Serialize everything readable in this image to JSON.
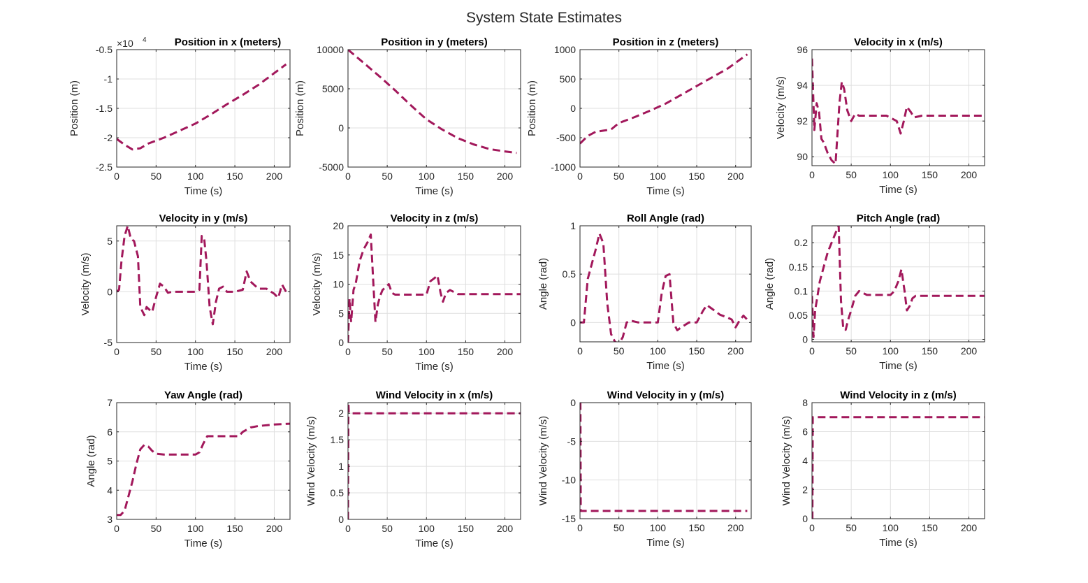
{
  "figure": {
    "title": "System State Estimates",
    "line_color": "#A2185B",
    "axis_color": "#262626",
    "grid_color": "#DFDFDF"
  },
  "chart_data": [
    {
      "type": "line",
      "title": "Position in x (meters)",
      "xlabel": "Time (s)",
      "ylabel": "Position (m)",
      "xlim": [
        0,
        220
      ],
      "ylim": [
        -2.5,
        -0.5
      ],
      "exponent_label": "×10",
      "exponent_power": "4",
      "xticks": [
        0,
        50,
        100,
        150,
        200
      ],
      "xtick_labels": [
        "0",
        "50",
        "100",
        "150",
        "200"
      ],
      "yticks": [
        -2.5,
        -2,
        -1.5,
        -1,
        -0.5
      ],
      "ytick_labels": [
        "-2.5",
        "-2",
        "-1.5",
        "-1",
        "-0.5"
      ],
      "series": [
        {
          "x": [
            0,
            10,
            20,
            30,
            40,
            60,
            80,
            100,
            120,
            140,
            160,
            180,
            200,
            215
          ],
          "y": [
            -2.02,
            -2.12,
            -2.2,
            -2.18,
            -2.1,
            -2.0,
            -1.88,
            -1.76,
            -1.6,
            -1.43,
            -1.27,
            -1.1,
            -0.9,
            -0.75
          ]
        }
      ]
    },
    {
      "type": "line",
      "title": "Position in y (meters)",
      "xlabel": "Time (s)",
      "ylabel": "Position (m)",
      "xlim": [
        0,
        220
      ],
      "ylim": [
        -5000,
        10000
      ],
      "xticks": [
        0,
        50,
        100,
        150,
        200
      ],
      "xtick_labels": [
        "0",
        "50",
        "100",
        "150",
        "200"
      ],
      "yticks": [
        -5000,
        0,
        5000,
        10000
      ],
      "ytick_labels": [
        "-5000",
        "0",
        "5000",
        "10000"
      ],
      "series": [
        {
          "x": [
            0,
            20,
            40,
            60,
            80,
            100,
            120,
            140,
            160,
            180,
            200,
            215
          ],
          "y": [
            10000,
            8300,
            6600,
            4800,
            2900,
            1100,
            -200,
            -1300,
            -2100,
            -2700,
            -3000,
            -3200
          ]
        }
      ]
    },
    {
      "type": "line",
      "title": "Position in z (meters)",
      "xlabel": "Time (s)",
      "ylabel": "Position (m)",
      "xlim": [
        0,
        220
      ],
      "ylim": [
        -1000,
        1000
      ],
      "xticks": [
        0,
        50,
        100,
        150,
        200
      ],
      "xtick_labels": [
        "0",
        "50",
        "100",
        "150",
        "200"
      ],
      "yticks": [
        -1000,
        -500,
        0,
        500,
        1000
      ],
      "ytick_labels": [
        "-1000",
        "-500",
        "0",
        "500",
        "1000"
      ],
      "series": [
        {
          "x": [
            0,
            10,
            20,
            30,
            40,
            50,
            70,
            90,
            110,
            130,
            150,
            170,
            190,
            215
          ],
          "y": [
            -600,
            -470,
            -400,
            -380,
            -360,
            -250,
            -150,
            -40,
            80,
            230,
            380,
            530,
            680,
            920
          ]
        }
      ]
    },
    {
      "type": "line",
      "title": "Velocity in x (m/s)",
      "xlabel": "Time (s)",
      "ylabel": "Velocity (m/s)",
      "xlim": [
        0,
        220
      ],
      "ylim": [
        89.5,
        96
      ],
      "xticks": [
        0,
        50,
        100,
        150,
        200
      ],
      "xtick_labels": [
        "0",
        "50",
        "100",
        "150",
        "200"
      ],
      "yticks": [
        90,
        92,
        94,
        96
      ],
      "ytick_labels": [
        "90",
        "92",
        "94",
        "96"
      ],
      "series": [
        {
          "x": [
            0,
            3,
            6,
            9,
            12,
            15,
            20,
            25,
            30,
            35,
            38,
            41,
            45,
            50,
            55,
            60,
            70,
            80,
            95,
            108,
            113,
            117,
            121,
            126,
            130,
            140,
            160,
            180,
            200,
            220
          ],
          "y": [
            95.5,
            91.5,
            93.0,
            92.5,
            91.0,
            90.8,
            90.2,
            89.8,
            89.6,
            93.0,
            94.2,
            93.8,
            92.6,
            92.0,
            92.4,
            92.3,
            92.3,
            92.3,
            92.3,
            92.0,
            91.3,
            92.0,
            92.8,
            92.5,
            92.2,
            92.3,
            92.3,
            92.3,
            92.3,
            92.3
          ]
        }
      ]
    },
    {
      "type": "line",
      "title": "Velocity in y (m/s)",
      "xlabel": "Time (s)",
      "ylabel": "Velocity (m/s)",
      "xlim": [
        0,
        220
      ],
      "ylim": [
        -5,
        6.5
      ],
      "xticks": [
        0,
        50,
        100,
        150,
        200
      ],
      "xtick_labels": [
        "0",
        "50",
        "100",
        "150",
        "200"
      ],
      "yticks": [
        -5,
        0,
        5
      ],
      "ytick_labels": [
        "-5",
        "0",
        "5"
      ],
      "series": [
        {
          "x": [
            0,
            3,
            6,
            10,
            14,
            18,
            22,
            27,
            30,
            35,
            38,
            42,
            45,
            50,
            55,
            60,
            65,
            70,
            80,
            90,
            100,
            105,
            108,
            111,
            114,
            118,
            122,
            126,
            130,
            135,
            140,
            150,
            160,
            165,
            170,
            180,
            190,
            200,
            205,
            210,
            215
          ],
          "y": [
            0,
            0.2,
            3.0,
            5.5,
            6.5,
            5.2,
            5.0,
            3.5,
            -1.5,
            -2.3,
            -1.5,
            -1.8,
            -2.0,
            -0.5,
            0.8,
            0.5,
            -0.1,
            0.0,
            0.0,
            0.0,
            0.0,
            0.2,
            5.5,
            5.3,
            3.0,
            -1.5,
            -3.2,
            -1.0,
            0.3,
            0.5,
            0.0,
            0.0,
            0.2,
            2.0,
            1.0,
            0.3,
            0.3,
            -0.2,
            -0.6,
            0.7,
            0.0
          ]
        }
      ]
    },
    {
      "type": "line",
      "title": "Velocity in z (m/s)",
      "xlabel": "Time (s)",
      "ylabel": "Velocity (m/s)",
      "xlim": [
        0,
        220
      ],
      "ylim": [
        0,
        20
      ],
      "xticks": [
        0,
        50,
        100,
        150,
        200
      ],
      "xtick_labels": [
        "0",
        "50",
        "100",
        "150",
        "200"
      ],
      "yticks": [
        0,
        5,
        10,
        15,
        20
      ],
      "ytick_labels": [
        "0",
        "5",
        "10",
        "15",
        "20"
      ],
      "series": [
        {
          "x": [
            0,
            2,
            4,
            7,
            10,
            15,
            20,
            25,
            29,
            32,
            35,
            38,
            41,
            44,
            48,
            52,
            56,
            60,
            70,
            80,
            100,
            105,
            110,
            114,
            118,
            121,
            125,
            130,
            140,
            160,
            180,
            200,
            220
          ],
          "y": [
            0,
            7.5,
            3.5,
            9.0,
            10.2,
            14.0,
            16.0,
            17.2,
            18.5,
            11.0,
            3.5,
            6.5,
            8.0,
            9.0,
            9.5,
            10.0,
            8.5,
            8.2,
            8.2,
            8.2,
            8.2,
            10.5,
            11.0,
            11.5,
            8.5,
            7.0,
            8.5,
            9.0,
            8.3,
            8.3,
            8.3,
            8.3,
            8.3
          ]
        }
      ]
    },
    {
      "type": "line",
      "title": "Roll Angle (rad)",
      "xlabel": "Time (s)",
      "ylabel": "Angle (rad)",
      "xlim": [
        0,
        220
      ],
      "ylim": [
        -0.2,
        1
      ],
      "xticks": [
        0,
        50,
        100,
        150,
        200
      ],
      "xtick_labels": [
        "0",
        "50",
        "100",
        "150",
        "200"
      ],
      "yticks": [
        0,
        0.5,
        1
      ],
      "ytick_labels": [
        "0",
        "0.5",
        "1"
      ],
      "series": [
        {
          "x": [
            0,
            5,
            10,
            15,
            20,
            25,
            30,
            35,
            40,
            45,
            50,
            55,
            60,
            65,
            75,
            90,
            100,
            105,
            110,
            115,
            120,
            125,
            130,
            140,
            150,
            158,
            163,
            170,
            180,
            190,
            195,
            200,
            205,
            210,
            215
          ],
          "y": [
            0,
            0,
            0.45,
            0.6,
            0.75,
            0.92,
            0.82,
            0.2,
            -0.12,
            -0.2,
            -0.22,
            -0.15,
            0.0,
            0.02,
            0.0,
            0.0,
            0.0,
            0.3,
            0.48,
            0.5,
            0.0,
            -0.08,
            -0.05,
            0.0,
            0.0,
            0.12,
            0.18,
            0.14,
            0.08,
            0.05,
            0.03,
            -0.05,
            0.02,
            0.07,
            0.03
          ]
        }
      ]
    },
    {
      "type": "line",
      "title": "Pitch Angle (rad)",
      "xlabel": "Time (s)",
      "ylabel": "Angle (rad)",
      "xlim": [
        0,
        220
      ],
      "ylim": [
        -0.005,
        0.235
      ],
      "xticks": [
        0,
        50,
        100,
        150,
        200
      ],
      "xtick_labels": [
        "0",
        "50",
        "100",
        "150",
        "200"
      ],
      "yticks": [
        0,
        0.05,
        0.1,
        0.15,
        0.2
      ],
      "ytick_labels": [
        "0",
        "0.05",
        "0.1",
        "0.15",
        "0.2"
      ],
      "series": [
        {
          "x": [
            0,
            2,
            4,
            7,
            10,
            15,
            20,
            25,
            30,
            34,
            37,
            40,
            43,
            46,
            50,
            55,
            60,
            70,
            80,
            90,
            100,
            105,
            110,
            114,
            118,
            121,
            125,
            128,
            132,
            140,
            160,
            180,
            200,
            220
          ],
          "y": [
            0.09,
            0.005,
            0.06,
            0.09,
            0.12,
            0.15,
            0.18,
            0.2,
            0.22,
            0.235,
            0.08,
            0.02,
            0.02,
            0.04,
            0.06,
            0.09,
            0.1,
            0.092,
            0.092,
            0.092,
            0.092,
            0.1,
            0.12,
            0.145,
            0.1,
            0.06,
            0.07,
            0.085,
            0.09,
            0.09,
            0.09,
            0.09,
            0.09,
            0.09
          ]
        }
      ]
    },
    {
      "type": "line",
      "title": "Yaw Angle (rad)",
      "xlabel": "Time (s)",
      "ylabel": "Angle (rad)",
      "xlim": [
        0,
        220
      ],
      "ylim": [
        3,
        7
      ],
      "xticks": [
        0,
        50,
        100,
        150,
        200
      ],
      "xtick_labels": [
        "0",
        "50",
        "100",
        "150",
        "200"
      ],
      "yticks": [
        3,
        4,
        5,
        6,
        7
      ],
      "ytick_labels": [
        "3",
        "4",
        "5",
        "6",
        "7"
      ],
      "series": [
        {
          "x": [
            0,
            5,
            10,
            15,
            20,
            25,
            30,
            35,
            40,
            45,
            50,
            60,
            80,
            100,
            105,
            110,
            115,
            120,
            140,
            155,
            160,
            170,
            180,
            200,
            220
          ],
          "y": [
            3.15,
            3.15,
            3.3,
            3.8,
            4.3,
            4.9,
            5.4,
            5.55,
            5.5,
            5.35,
            5.25,
            5.22,
            5.22,
            5.22,
            5.3,
            5.6,
            5.85,
            5.85,
            5.85,
            5.85,
            6.0,
            6.15,
            6.2,
            6.25,
            6.28
          ]
        }
      ]
    },
    {
      "type": "line",
      "title": "Wind Velocity in x (m/s)",
      "xlabel": "Time (s)",
      "ylabel": "Wind Velocity (m/s)",
      "xlim": [
        0,
        220
      ],
      "ylim": [
        0,
        2.2
      ],
      "xticks": [
        0,
        50,
        100,
        150,
        200
      ],
      "xtick_labels": [
        "0",
        "50",
        "100",
        "150",
        "200"
      ],
      "yticks": [
        0,
        0.5,
        1,
        1.5,
        2
      ],
      "ytick_labels": [
        "0",
        "0.5",
        "1",
        "1.5",
        "2"
      ],
      "series": [
        {
          "x": [
            0,
            0.5,
            1,
            2,
            220
          ],
          "y": [
            0,
            2.2,
            2.02,
            2.0,
            2.0
          ]
        }
      ]
    },
    {
      "type": "line",
      "title": "Wind Velocity in y (m/s)",
      "xlabel": "Time (s)",
      "ylabel": "Wind Velocity (m/s)",
      "xlim": [
        0,
        220
      ],
      "ylim": [
        -15,
        0
      ],
      "xticks": [
        0,
        50,
        100,
        150,
        200
      ],
      "xtick_labels": [
        "0",
        "50",
        "100",
        "150",
        "200"
      ],
      "yticks": [
        -15,
        -10,
        -5,
        0
      ],
      "ytick_labels": [
        "-15",
        "-10",
        "-5",
        "0"
      ],
      "series": [
        {
          "x": [
            0,
            0.5,
            1,
            215
          ],
          "y": [
            0,
            0,
            -14,
            -14
          ]
        }
      ]
    },
    {
      "type": "line",
      "title": "Wind Velocity in z (m/s)",
      "xlabel": "Time (s)",
      "ylabel": "Wind Velocity (m/s)",
      "xlim": [
        0,
        220
      ],
      "ylim": [
        0,
        8
      ],
      "xticks": [
        0,
        50,
        100,
        150,
        200
      ],
      "xtick_labels": [
        "0",
        "50",
        "100",
        "150",
        "200"
      ],
      "yticks": [
        0,
        2,
        4,
        6,
        8
      ],
      "ytick_labels": [
        "0",
        "2",
        "4",
        "6",
        "8"
      ],
      "series": [
        {
          "x": [
            0,
            0.5,
            1,
            220
          ],
          "y": [
            0,
            0,
            7.0,
            7.0
          ]
        }
      ]
    }
  ]
}
